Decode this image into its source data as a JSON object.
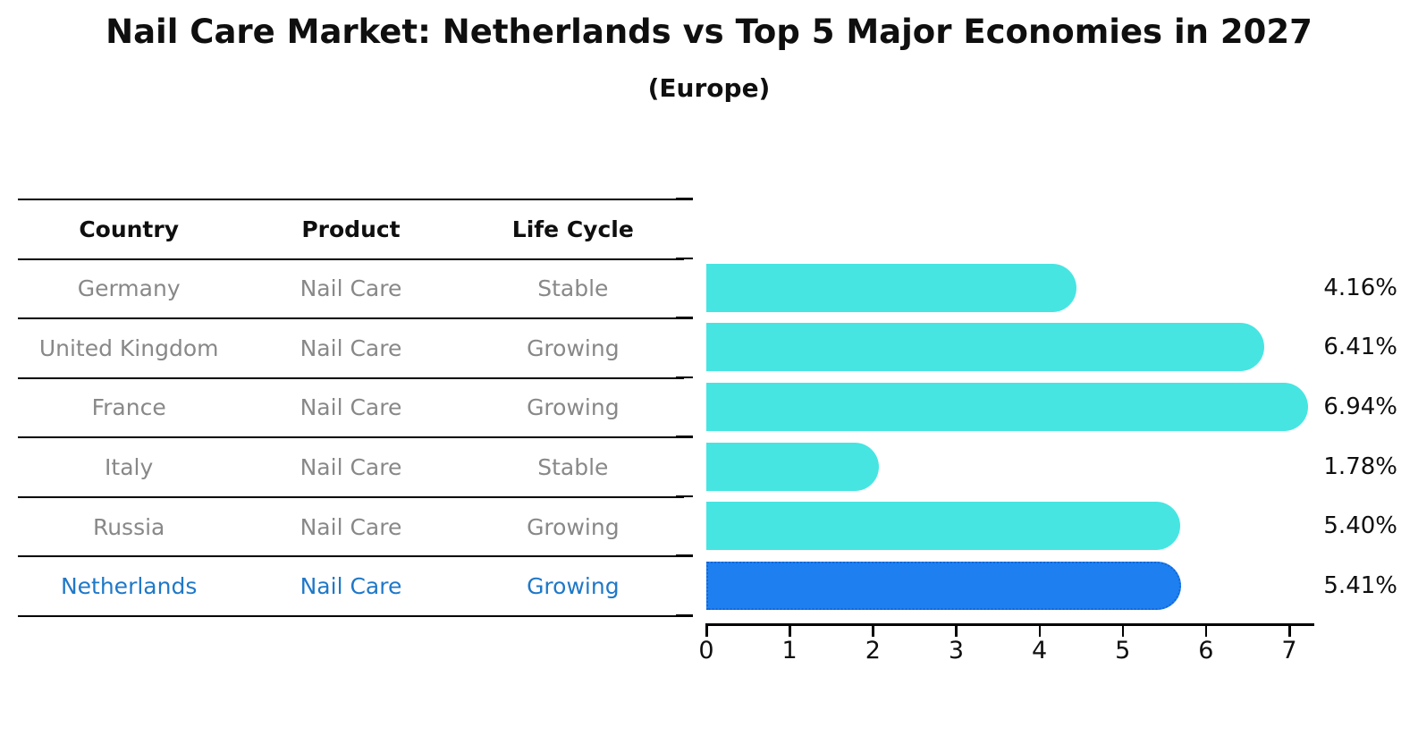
{
  "header": {
    "title": "Nail Care Market: Netherlands vs Top 5 Major Economies in 2027",
    "subtitle": "(Europe)"
  },
  "table": {
    "columns": [
      "Country",
      "Product",
      "Life Cycle"
    ],
    "rows": [
      {
        "country": "Germany",
        "product": "Nail Care",
        "life_cycle": "Stable",
        "highlight": false
      },
      {
        "country": "United Kingdom",
        "product": "Nail Care",
        "life_cycle": "Growing",
        "highlight": false
      },
      {
        "country": "France",
        "product": "Nail Care",
        "life_cycle": "Growing",
        "highlight": false
      },
      {
        "country": "Italy",
        "product": "Nail Care",
        "life_cycle": "Stable",
        "highlight": false
      },
      {
        "country": "Russia",
        "product": "Nail Care",
        "life_cycle": "Growing",
        "highlight": false
      },
      {
        "country": "Netherlands",
        "product": "Nail Care",
        "life_cycle": "Growing",
        "highlight": true
      }
    ],
    "text_color": "#888888",
    "highlight_text_color": "#1f78c8"
  },
  "chart_data": {
    "type": "bar",
    "orientation": "horizontal",
    "title": "Nail Care Market: Netherlands vs Top 5 Major Economies in 2027",
    "subtitle": "(Europe)",
    "categories": [
      "Germany",
      "United Kingdom",
      "France",
      "Italy",
      "Russia",
      "Netherlands"
    ],
    "values": [
      4.16,
      6.41,
      6.94,
      1.78,
      5.4,
      5.41
    ],
    "value_labels": [
      "4.16%",
      "6.41%",
      "6.94%",
      "1.78%",
      "5.40%",
      "5.41%"
    ],
    "x_ticks": [
      "0",
      "1",
      "2",
      "3",
      "4",
      "5",
      "6",
      "7"
    ],
    "xlim": [
      0,
      7
    ],
    "grid": false,
    "legend": "none",
    "bar_color": "#46e5e2",
    "highlight_index": 5,
    "highlight_bar_color": "#1e80f0",
    "highlight_border_color": "#1266d9",
    "axis_color": "#000000"
  }
}
